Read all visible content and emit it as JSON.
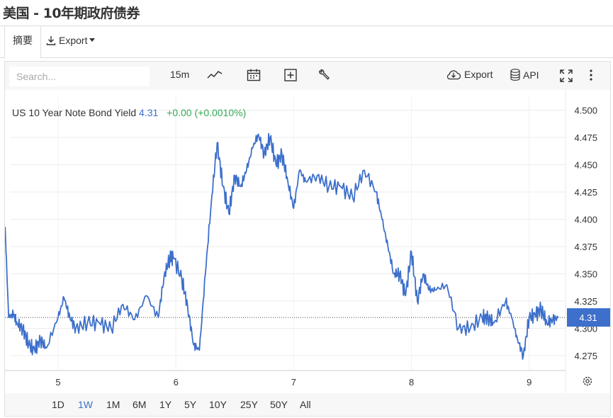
{
  "page_title": "美国 - 10年期政府债券",
  "tabs": {
    "summary": "摘要",
    "export": "Export"
  },
  "toolbar": {
    "search_placeholder": "Search...",
    "interval": "15m",
    "export": "Export",
    "api": "API"
  },
  "legend": {
    "name": "US 10 Year Note Bond Yield",
    "value": "4.31",
    "change": "+0.00 (+0.0010%)"
  },
  "current_label": "4.31",
  "range_buttons": [
    "1D",
    "1W",
    "1M",
    "6M",
    "1Y",
    "5Y",
    "10Y",
    "25Y",
    "50Y",
    "All"
  ],
  "active_range": "1W",
  "colors": {
    "line": "#3d6fcb",
    "up": "#34a853",
    "accent": "#3d6fcb"
  },
  "chart_data": {
    "type": "line",
    "title": "US 10 Year Note Bond Yield",
    "x_ticks": [
      "5",
      "6",
      "7",
      "8",
      "9"
    ],
    "y_ticks": [
      "4.275",
      "4.300",
      "4.325",
      "4.350",
      "4.375",
      "4.400",
      "4.425",
      "4.450",
      "4.475",
      "4.500"
    ],
    "ylim": [
      4.262,
      4.512
    ],
    "current_value": 4.31,
    "grid": true,
    "series": [
      {
        "name": "US 10 Year Note Bond Yield",
        "x": [
          4.55,
          4.58,
          4.62,
          4.65,
          4.7,
          4.75,
          4.8,
          4.85,
          4.9,
          5.0,
          5.05,
          5.1,
          5.15,
          5.25,
          5.35,
          5.45,
          5.55,
          5.65,
          5.75,
          5.85,
          5.9,
          5.95,
          5.98,
          6.05,
          6.1,
          6.15,
          6.2,
          6.25,
          6.3,
          6.35,
          6.4,
          6.45,
          6.5,
          6.55,
          6.6,
          6.65,
          6.7,
          6.75,
          6.8,
          6.85,
          6.9,
          6.95,
          7.0,
          7.05,
          7.1,
          7.2,
          7.3,
          7.4,
          7.5,
          7.6,
          7.7,
          7.75,
          7.8,
          7.85,
          7.9,
          7.95,
          8.0,
          8.05,
          8.1,
          8.15,
          8.2,
          8.3,
          8.4,
          8.5,
          8.6,
          8.65,
          8.7,
          8.8,
          8.85,
          8.9,
          8.95,
          9.0,
          9.05,
          9.1,
          9.15,
          9.2,
          9.25
        ],
        "values": [
          4.393,
          4.31,
          4.313,
          4.305,
          4.3,
          4.285,
          4.28,
          4.29,
          4.282,
          4.31,
          4.328,
          4.31,
          4.3,
          4.305,
          4.305,
          4.3,
          4.322,
          4.308,
          4.33,
          4.31,
          4.348,
          4.365,
          4.365,
          4.345,
          4.32,
          4.285,
          4.28,
          4.35,
          4.415,
          4.47,
          4.43,
          4.405,
          4.44,
          4.43,
          4.445,
          4.465,
          4.478,
          4.46,
          4.475,
          4.45,
          4.46,
          4.435,
          4.41,
          4.445,
          4.435,
          4.44,
          4.43,
          4.43,
          4.42,
          4.445,
          4.425,
          4.4,
          4.375,
          4.35,
          4.35,
          4.33,
          4.37,
          4.325,
          4.35,
          4.335,
          4.335,
          4.34,
          4.3,
          4.3,
          4.31,
          4.31,
          4.305,
          4.325,
          4.31,
          4.29,
          4.275,
          4.31,
          4.312,
          4.318,
          4.305,
          4.308,
          4.31
        ]
      }
    ]
  }
}
